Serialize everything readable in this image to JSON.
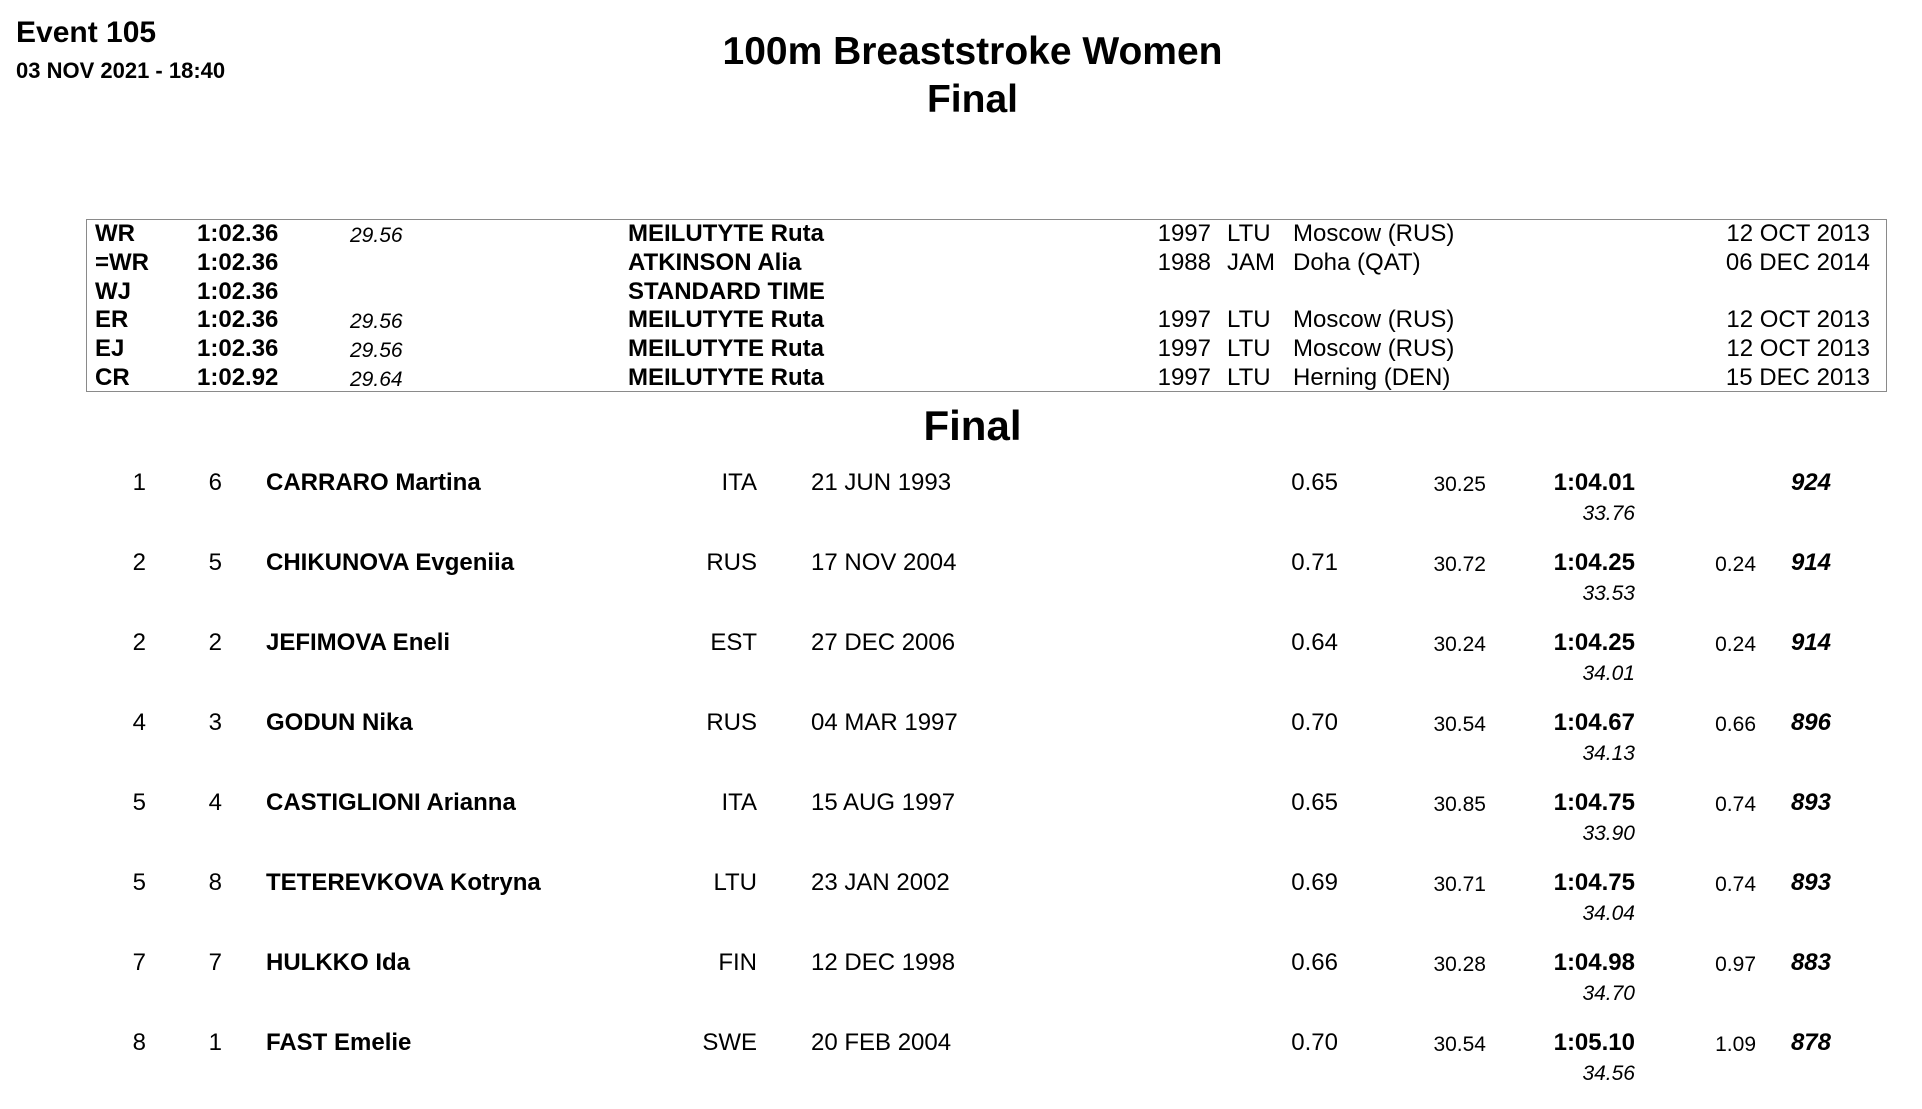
{
  "header": {
    "event": "Event 105",
    "datetime": "03 NOV 2021 - 18:40",
    "title": "100m Breaststroke Women",
    "subtitle": "Final"
  },
  "records": [
    {
      "code": "WR",
      "time": "1:02.36",
      "split": "29.56",
      "name": "MEILUTYTE Ruta",
      "year": "1997",
      "nat": "LTU",
      "place": "Moscow (RUS)",
      "date": "12 OCT 2013"
    },
    {
      "code": "=WR",
      "time": "1:02.36",
      "split": "",
      "name": "ATKINSON Alia",
      "year": "1988",
      "nat": "JAM",
      "place": "Doha (QAT)",
      "date": "06 DEC 2014"
    },
    {
      "code": "WJ",
      "time": "1:02.36",
      "split": "",
      "name": "STANDARD TIME",
      "year": "",
      "nat": "",
      "place": "",
      "date": ""
    },
    {
      "code": "ER",
      "time": "1:02.36",
      "split": "29.56",
      "name": "MEILUTYTE Ruta",
      "year": "1997",
      "nat": "LTU",
      "place": "Moscow (RUS)",
      "date": "12 OCT 2013"
    },
    {
      "code": "EJ",
      "time": "1:02.36",
      "split": "29.56",
      "name": "MEILUTYTE Ruta",
      "year": "1997",
      "nat": "LTU",
      "place": "Moscow (RUS)",
      "date": "12 OCT 2013"
    },
    {
      "code": "CR",
      "time": "1:02.92",
      "split": "29.64",
      "name": "MEILUTYTE Ruta",
      "year": "1997",
      "nat": "LTU",
      "place": "Herning (DEN)",
      "date": "15 DEC 2013"
    }
  ],
  "section_title": "Final",
  "results": [
    {
      "rank": "1",
      "lane": "6",
      "name": "CARRARO Martina",
      "nat": "ITA",
      "dob": "21 JUN 1993",
      "rt": "0.65",
      "split50": "30.25",
      "time": "1:04.01",
      "split100": "33.76",
      "behind": "",
      "points": "924"
    },
    {
      "rank": "2",
      "lane": "5",
      "name": "CHIKUNOVA Evgeniia",
      "nat": "RUS",
      "dob": "17 NOV 2004",
      "rt": "0.71",
      "split50": "30.72",
      "time": "1:04.25",
      "split100": "33.53",
      "behind": "0.24",
      "points": "914"
    },
    {
      "rank": "2",
      "lane": "2",
      "name": "JEFIMOVA Eneli",
      "nat": "EST",
      "dob": "27 DEC 2006",
      "rt": "0.64",
      "split50": "30.24",
      "time": "1:04.25",
      "split100": "34.01",
      "behind": "0.24",
      "points": "914"
    },
    {
      "rank": "4",
      "lane": "3",
      "name": "GODUN Nika",
      "nat": "RUS",
      "dob": "04 MAR 1997",
      "rt": "0.70",
      "split50": "30.54",
      "time": "1:04.67",
      "split100": "34.13",
      "behind": "0.66",
      "points": "896"
    },
    {
      "rank": "5",
      "lane": "4",
      "name": "CASTIGLIONI Arianna",
      "nat": "ITA",
      "dob": "15 AUG 1997",
      "rt": "0.65",
      "split50": "30.85",
      "time": "1:04.75",
      "split100": "33.90",
      "behind": "0.74",
      "points": "893"
    },
    {
      "rank": "5",
      "lane": "8",
      "name": "TETEREVKOVA Kotryna",
      "nat": "LTU",
      "dob": "23 JAN 2002",
      "rt": "0.69",
      "split50": "30.71",
      "time": "1:04.75",
      "split100": "34.04",
      "behind": "0.74",
      "points": "893"
    },
    {
      "rank": "7",
      "lane": "7",
      "name": "HULKKO Ida",
      "nat": "FIN",
      "dob": "12 DEC 1998",
      "rt": "0.66",
      "split50": "30.28",
      "time": "1:04.98",
      "split100": "34.70",
      "behind": "0.97",
      "points": "883"
    },
    {
      "rank": "8",
      "lane": "1",
      "name": "FAST Emelie",
      "nat": "SWE",
      "dob": "20 FEB 2004",
      "rt": "0.70",
      "split50": "30.54",
      "time": "1:05.10",
      "split100": "34.56",
      "behind": "1.09",
      "points": "878"
    }
  ]
}
